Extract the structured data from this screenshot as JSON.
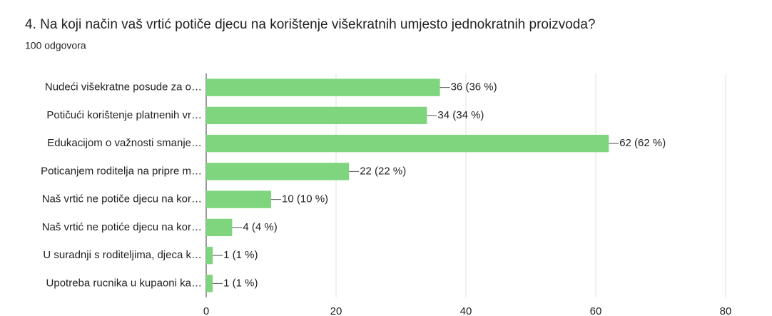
{
  "chart_data": {
    "type": "bar",
    "orientation": "horizontal",
    "title": "4. Na koji način vaš vrtić potiče djecu na korištenje višekratnih umjesto jednokratnih proizvoda?",
    "subtitle": "100 odgovora",
    "categories": [
      "Nudeći višekratne posude za o…",
      "Potičući korištenje platnenih vr…",
      "Edukacijom o važnosti smanje…",
      "Poticanjem roditelja na pripre m…",
      "Naš vrtić ne potiče djecu na kor…",
      "Naš vrtić ne potiće djecu na kor…",
      "U suradnji s roditeljima, djeca k…",
      "Upotreba rucnika u kupaoni ka…"
    ],
    "values": [
      36,
      34,
      62,
      22,
      10,
      4,
      1,
      1
    ],
    "value_labels": [
      "36 (36 %)",
      "34 (34 %)",
      "62 (62 %)",
      "22 (22 %)",
      "10 (10 %)",
      "4 (4 %)",
      "1 (1 %)",
      "1 (1 %)"
    ],
    "color": "#7ed57e",
    "xlim": [
      0,
      80
    ],
    "xticks": [
      0,
      20,
      40,
      60,
      80
    ],
    "grid": true
  }
}
